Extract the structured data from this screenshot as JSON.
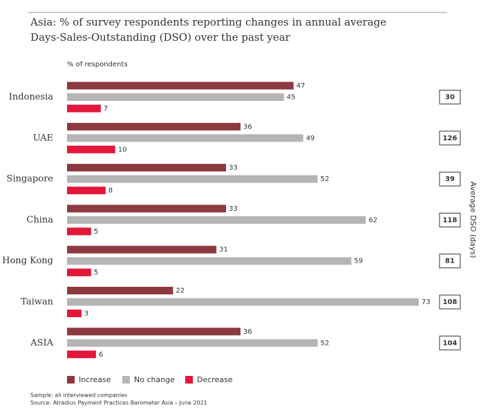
{
  "chart_data": {
    "type": "bar",
    "orientation": "horizontal",
    "title": "Asia: % of survey respondents reporting changes in annual average",
    "subtitle": "Days-Sales-Outstanding (DSO) over the past year",
    "x_label": "% of respondents",
    "categories": [
      "Indonesia",
      "UAE",
      "Singapore",
      "China",
      "Hong Kong",
      "Taiwan",
      "ASIA"
    ],
    "series": [
      {
        "name": "Increase",
        "color": "#8c3a3f",
        "values": [
          47,
          36,
          33,
          33,
          31,
          22,
          36
        ]
      },
      {
        "name": "No change",
        "color": "#b5b5b5",
        "values": [
          45,
          49,
          52,
          62,
          59,
          73,
          52
        ]
      },
      {
        "name": "Decrease",
        "color": "#e2173a",
        "values": [
          7,
          10,
          8,
          5,
          5,
          3,
          6
        ]
      }
    ],
    "xlim": [
      0,
      75
    ],
    "dso": {
      "title": "Average DSO (days)",
      "values": [
        30,
        126,
        39,
        118,
        81,
        108,
        104
      ]
    },
    "notes": [
      "Sample: all interviewed companies",
      "Source: Atradius Payment Practices Barometer Asia – June 2021"
    ]
  }
}
